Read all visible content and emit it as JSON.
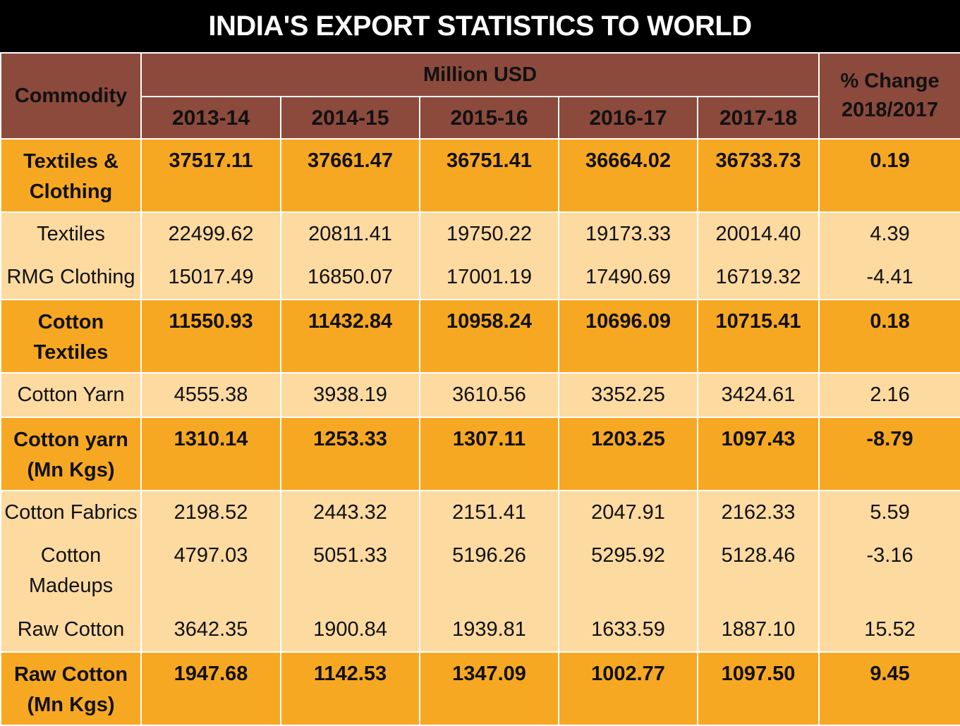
{
  "title": "INDIA'S EXPORT STATISTICS TO WORLD",
  "chart_data": {
    "type": "table",
    "title": "INDIA'S EXPORT STATISTICS TO WORLD",
    "header": {
      "commodity": "Commodity",
      "unit": "Million USD",
      "years": [
        "2013-14",
        "2014-15",
        "2015-16",
        "2016-17",
        "2017-18"
      ],
      "pct_change": "% Change 2018/2017"
    },
    "groups": [
      {
        "name": "Textiles & Clothing",
        "values": [
          "37517.11",
          "37661.47",
          "36751.41",
          "36664.02",
          "36733.73"
        ],
        "change": "0.19",
        "items": [
          {
            "name": "Textiles",
            "values": [
              "22499.62",
              "20811.41",
              "19750.22",
              "19173.33",
              "20014.40"
            ],
            "change": "4.39"
          },
          {
            "name": "RMG Clothing",
            "values": [
              "15017.49",
              "16850.07",
              "17001.19",
              "17490.69",
              "16719.32"
            ],
            "change": "-4.41"
          }
        ]
      },
      {
        "name": "Cotton Textiles",
        "values": [
          "11550.93",
          "11432.84",
          "10958.24",
          "10696.09",
          "10715.41"
        ],
        "change": "0.18",
        "items": [
          {
            "name": "Cotton Yarn",
            "values": [
              "4555.38",
              "3938.19",
              "3610.56",
              "3352.25",
              "3424.61"
            ],
            "change": "2.16"
          }
        ]
      },
      {
        "name": "Cotton yarn (Mn Kgs)",
        "values": [
          "1310.14",
          "1253.33",
          "1307.11",
          "1203.25",
          "1097.43"
        ],
        "change": "-8.79",
        "items": [
          {
            "name": "Cotton Fabrics",
            "values": [
              "2198.52",
              "2443.32",
              "2151.41",
              "2047.91",
              "2162.33"
            ],
            "change": "5.59"
          },
          {
            "name": "Cotton Madeups",
            "values": [
              "4797.03",
              "5051.33",
              "5196.26",
              "5295.92",
              "5128.46"
            ],
            "change": "-3.16"
          },
          {
            "name": "Raw Cotton",
            "values": [
              "3642.35",
              "1900.84",
              "1939.81",
              "1633.59",
              "1887.10"
            ],
            "change": "15.52"
          }
        ]
      },
      {
        "name": "Raw Cotton (Mn Kgs)",
        "values": [
          "1947.68",
          "1142.53",
          "1347.09",
          "1002.77",
          "1097.50"
        ],
        "change": "9.45",
        "items": []
      }
    ]
  },
  "colors": {
    "title_bg": "#000000",
    "header_bg": "#8b4a3c",
    "bold_row_bg": "#f7a823",
    "light_row_bg": "#fddaa0"
  }
}
